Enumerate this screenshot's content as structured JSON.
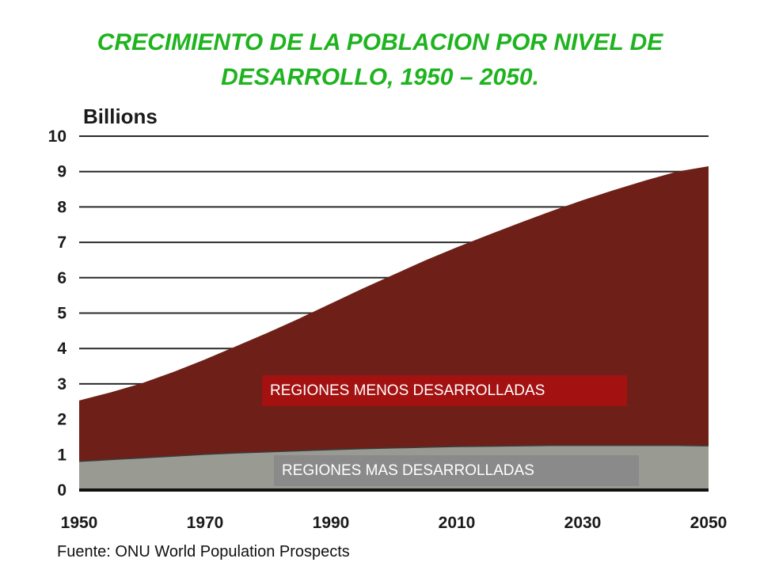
{
  "title_lines": [
    "CRECIMIENTO DE LA POBLACION POR NIVEL DE",
    "DESARROLLO, 1950 – 2050."
  ],
  "source": "Fuente: ONU World Population Prospects",
  "colors": {
    "title": "#1fb41f",
    "less_developed": "#6e2018",
    "more_developed": "#999a91",
    "less_label_bg": "#a31111",
    "more_label_bg": "#8a8a8a"
  },
  "chart_data": {
    "type": "area",
    "stacked": true,
    "ylabel": "Billions",
    "xlabel": "",
    "title": "",
    "xlim": [
      1950,
      2050
    ],
    "ylim": [
      0,
      10
    ],
    "yticks": [
      "0",
      "1",
      "2",
      "3",
      "4",
      "5",
      "6",
      "7",
      "8",
      "9",
      "10"
    ],
    "xticks": [
      "1950",
      "1970",
      "1990",
      "2010",
      "2030",
      "2050"
    ],
    "grid": true,
    "x": [
      1950,
      1955,
      1960,
      1965,
      1970,
      1975,
      1980,
      1985,
      1990,
      1995,
      2000,
      2005,
      2010,
      2015,
      2020,
      2025,
      2030,
      2035,
      2040,
      2045,
      2050
    ],
    "series": [
      {
        "name": "REGIONES MAS DESARROLLADAS",
        "values": [
          0.81,
          0.86,
          0.91,
          0.96,
          1.01,
          1.05,
          1.08,
          1.11,
          1.14,
          1.17,
          1.19,
          1.21,
          1.23,
          1.24,
          1.25,
          1.26,
          1.26,
          1.26,
          1.26,
          1.26,
          1.25
        ]
      },
      {
        "name": "REGIONES MENOS DESARROLLADAS",
        "values": [
          1.72,
          1.9,
          2.11,
          2.38,
          2.68,
          3.02,
          3.37,
          3.74,
          4.13,
          4.52,
          4.9,
          5.28,
          5.63,
          5.97,
          6.3,
          6.62,
          6.93,
          7.22,
          7.49,
          7.74,
          7.9
        ]
      }
    ]
  }
}
